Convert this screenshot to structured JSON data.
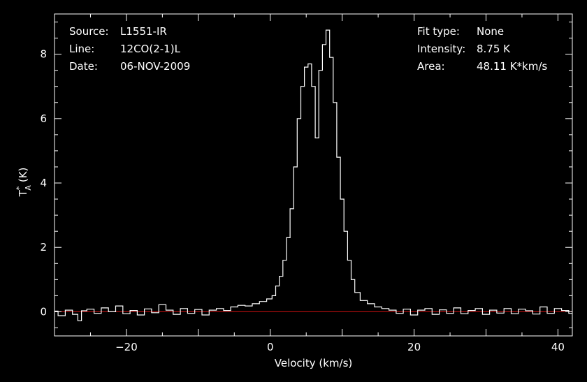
{
  "chart_data": {
    "type": "line",
    "title": "",
    "xlabel": "Velocity (km/s)",
    "ylabel": {
      "base": "T",
      "superscript": "*",
      "subscript": "A",
      "unit": "(K)"
    },
    "xlim": [
      -30,
      42
    ],
    "ylim": [
      -0.75,
      9.25
    ],
    "x_ticks": [
      -20,
      0,
      20,
      40
    ],
    "y_ticks": [
      0,
      2,
      4,
      6,
      8
    ],
    "grid": false,
    "baseline": {
      "y": 0,
      "color": "#d01010"
    },
    "series": [
      {
        "color": "#ffffff",
        "step": true,
        "points": [
          [
            -30,
            0.02
          ],
          [
            -29,
            -0.12
          ],
          [
            -28,
            0.05
          ],
          [
            -27,
            -0.08
          ],
          [
            -26.5,
            -0.28
          ],
          [
            -26,
            0.03
          ],
          [
            -25,
            0.08
          ],
          [
            -24,
            -0.05
          ],
          [
            -23,
            0.12
          ],
          [
            -22,
            0.0
          ],
          [
            -21,
            0.18
          ],
          [
            -20,
            -0.06
          ],
          [
            -19,
            0.04
          ],
          [
            -18,
            -0.1
          ],
          [
            -17,
            0.09
          ],
          [
            -16,
            -0.03
          ],
          [
            -15,
            0.22
          ],
          [
            -14,
            0.05
          ],
          [
            -13,
            -0.08
          ],
          [
            -12,
            0.1
          ],
          [
            -11,
            -0.05
          ],
          [
            -10,
            0.07
          ],
          [
            -9,
            -0.1
          ],
          [
            -8,
            0.05
          ],
          [
            -7,
            0.1
          ],
          [
            -6,
            0.04
          ],
          [
            -5,
            0.15
          ],
          [
            -4,
            0.2
          ],
          [
            -3,
            0.18
          ],
          [
            -2,
            0.25
          ],
          [
            -1,
            0.32
          ],
          [
            0,
            0.4
          ],
          [
            0.5,
            0.5
          ],
          [
            1,
            0.8
          ],
          [
            1.5,
            1.1
          ],
          [
            2,
            1.6
          ],
          [
            2.5,
            2.3
          ],
          [
            3,
            3.2
          ],
          [
            3.5,
            4.5
          ],
          [
            4,
            6.0
          ],
          [
            4.5,
            7.0
          ],
          [
            5,
            7.6
          ],
          [
            5.5,
            7.7
          ],
          [
            6,
            7.0
          ],
          [
            6.5,
            5.4
          ],
          [
            7,
            7.5
          ],
          [
            7.5,
            8.3
          ],
          [
            8,
            8.75
          ],
          [
            8.5,
            7.9
          ],
          [
            9,
            6.5
          ],
          [
            9.5,
            4.8
          ],
          [
            10,
            3.5
          ],
          [
            10.5,
            2.5
          ],
          [
            11,
            1.6
          ],
          [
            11.5,
            1.0
          ],
          [
            12,
            0.6
          ],
          [
            13,
            0.35
          ],
          [
            14,
            0.25
          ],
          [
            15,
            0.15
          ],
          [
            16,
            0.1
          ],
          [
            17,
            0.05
          ],
          [
            18,
            -0.05
          ],
          [
            19,
            0.08
          ],
          [
            20,
            -0.1
          ],
          [
            21,
            0.05
          ],
          [
            22,
            0.1
          ],
          [
            23,
            -0.08
          ],
          [
            24,
            0.06
          ],
          [
            25,
            -0.05
          ],
          [
            26,
            0.12
          ],
          [
            27,
            -0.06
          ],
          [
            28,
            0.04
          ],
          [
            29,
            0.1
          ],
          [
            30,
            -0.08
          ],
          [
            31,
            0.05
          ],
          [
            32,
            -0.04
          ],
          [
            33,
            0.1
          ],
          [
            34,
            -0.06
          ],
          [
            35,
            0.08
          ],
          [
            36,
            0.03
          ],
          [
            37,
            -0.07
          ],
          [
            38,
            0.15
          ],
          [
            39,
            -0.05
          ],
          [
            40,
            0.1
          ],
          [
            41,
            0.04
          ],
          [
            42,
            -0.05
          ]
        ]
      }
    ]
  },
  "annotations": {
    "left": [
      {
        "key": "Source:",
        "value": "L1551-IR"
      },
      {
        "key": "Line:",
        "value": "12CO(2-1)L"
      },
      {
        "key": "Date:",
        "value": "06-NOV-2009"
      }
    ],
    "right": [
      {
        "key": "Fit type:",
        "value": "None"
      },
      {
        "key": "Intensity:",
        "value": "8.75 K"
      },
      {
        "key": "Area:",
        "value": "48.11 K*km/s"
      }
    ]
  }
}
